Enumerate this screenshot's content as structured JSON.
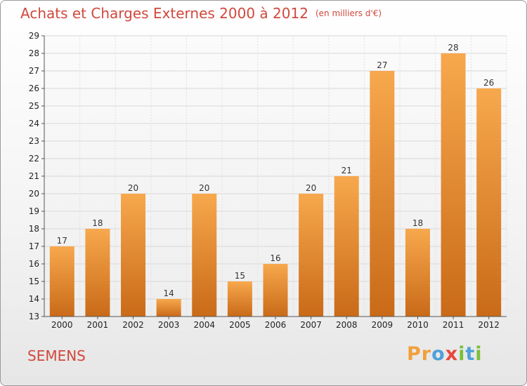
{
  "header": {
    "title": "Achats et Charges Externes 2000 à 2012",
    "unit": "(en milliers d'€)"
  },
  "footer": {
    "place": "SEMENS",
    "brand_letters": [
      "P",
      "r",
      "o",
      "x",
      "i",
      "t",
      "i"
    ]
  },
  "colors": {
    "title": "#d1483d",
    "bar_top": "#f7a84d",
    "bar_bottom": "#c96a18",
    "brand_orange": "#f2a03c",
    "brand_blue": "#4ea1d9",
    "brand_red": "#e8463b",
    "brand_green": "#7bbf3a"
  },
  "chart_data": {
    "type": "bar",
    "title": "Achats et Charges Externes 2000 à 2012",
    "subtitle": "(en milliers d'€)",
    "categories": [
      "2000",
      "2001",
      "2002",
      "2003",
      "2004",
      "2005",
      "2006",
      "2007",
      "2008",
      "2009",
      "2010",
      "2011",
      "2012"
    ],
    "values": [
      17,
      18,
      20,
      14,
      20,
      15,
      16,
      20,
      21,
      27,
      18,
      28,
      26
    ],
    "ylim": [
      13,
      29
    ],
    "yticks": [
      13,
      14,
      15,
      16,
      17,
      18,
      19,
      20,
      21,
      22,
      23,
      24,
      25,
      26,
      27,
      28,
      29
    ],
    "grid": "horizontal",
    "legend": "none",
    "data_labels": true
  }
}
